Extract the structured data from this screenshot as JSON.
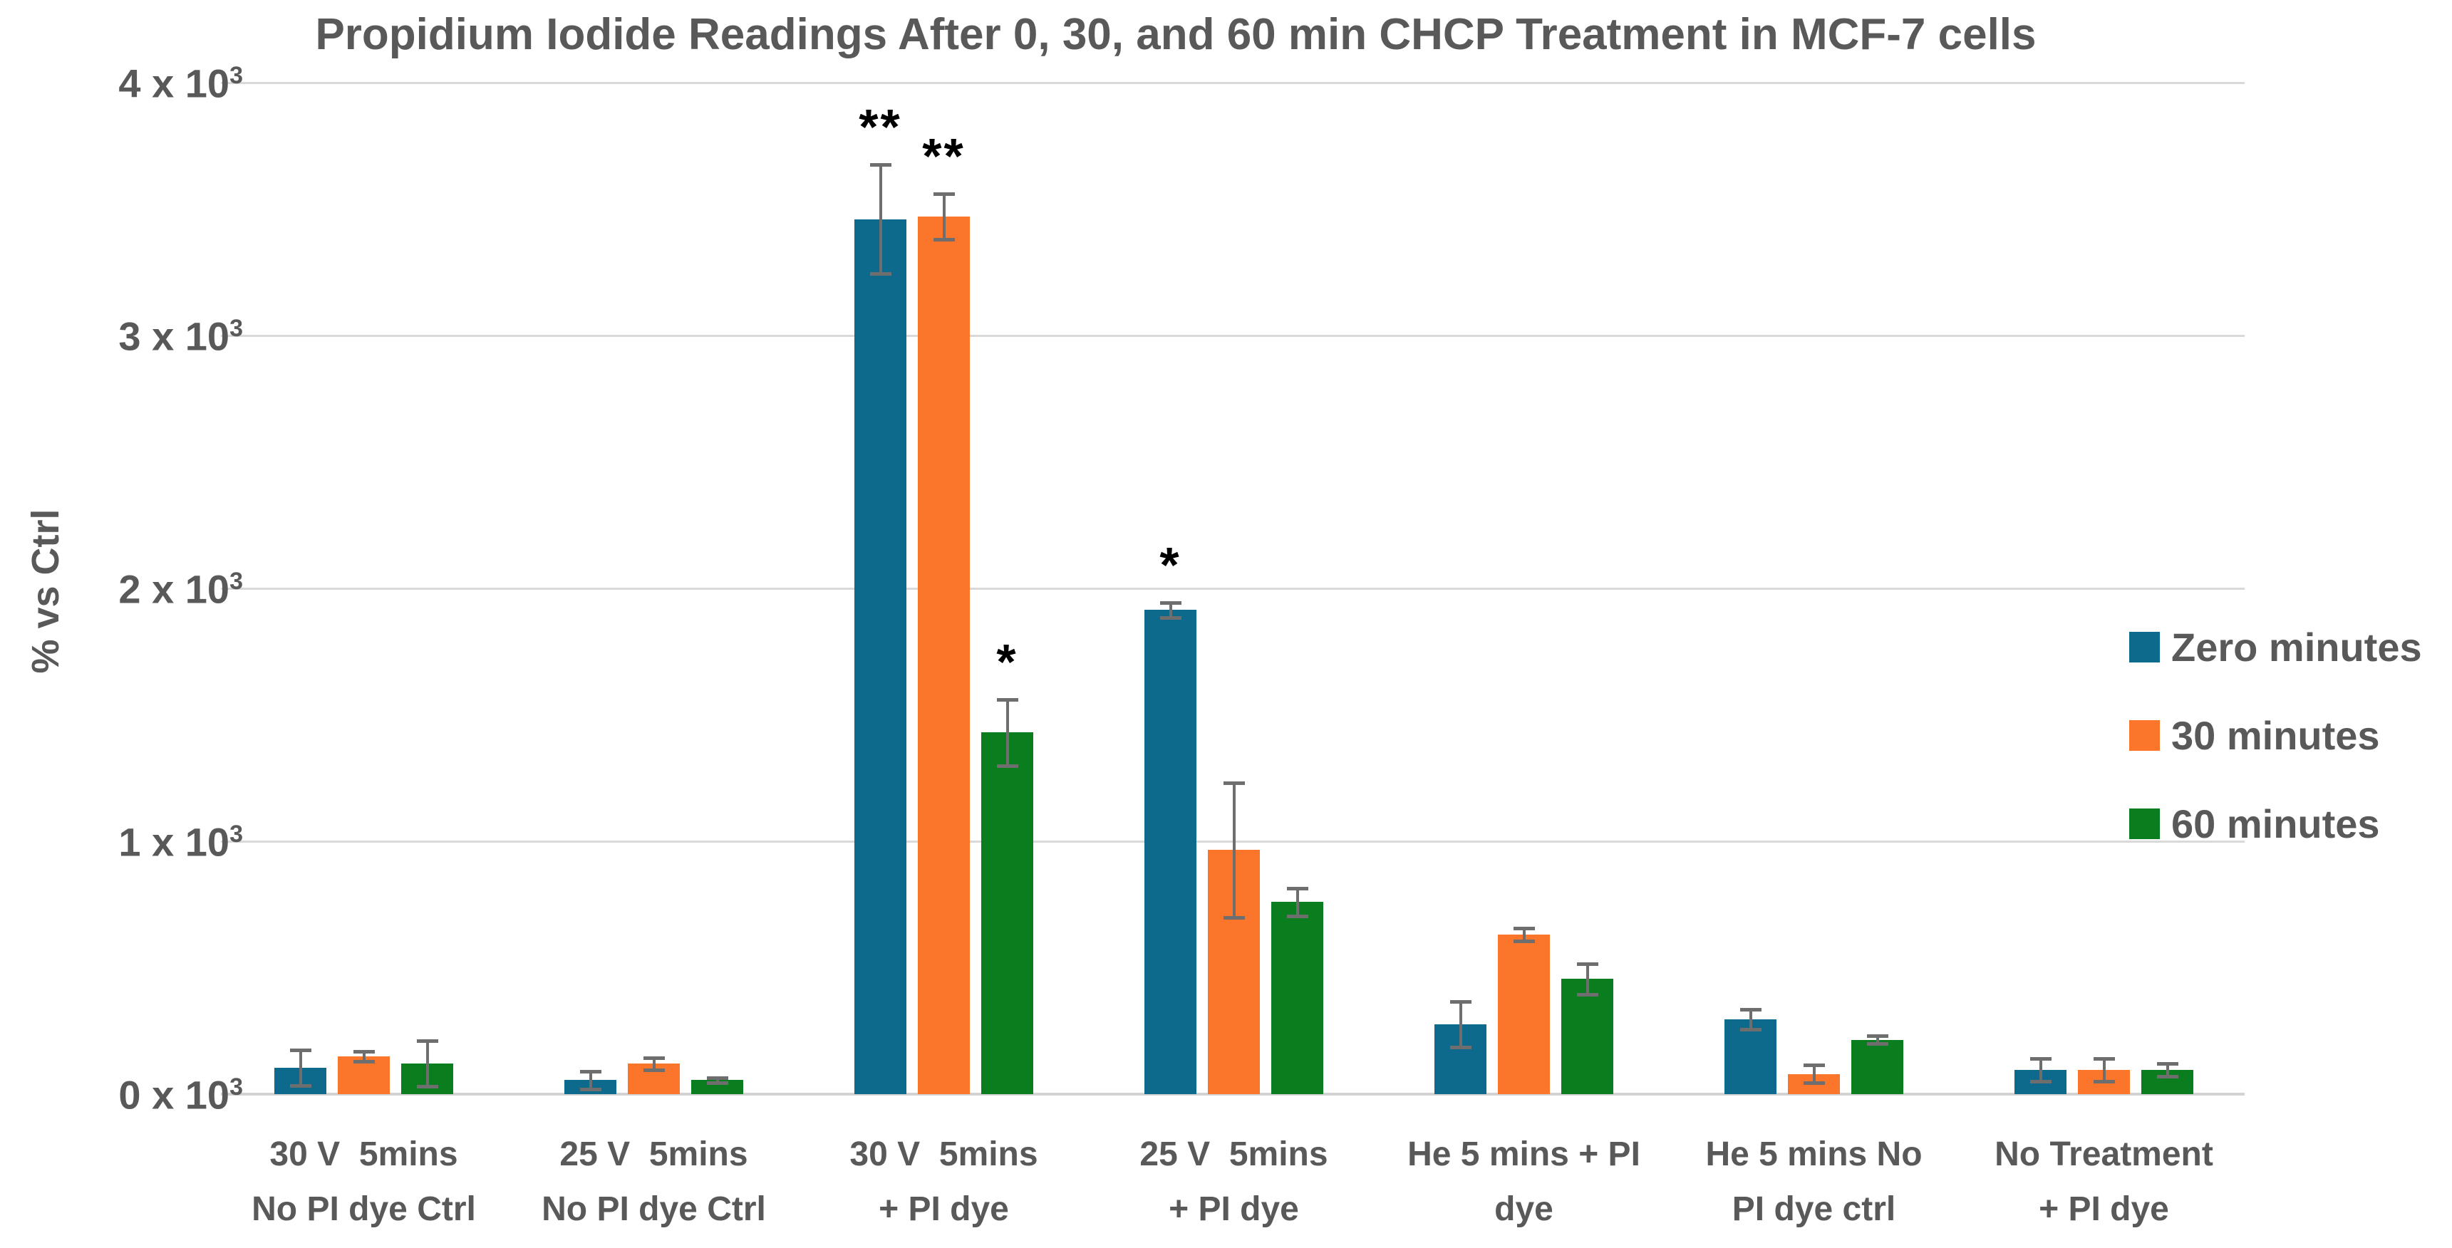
{
  "chart_data": {
    "type": "bar",
    "title": "Propidium Iodide Readings After 0, 30, and 60 min CHCP Treatment in MCF-7 cells",
    "ylabel": "% vs Ctrl",
    "ylim": [
      0,
      4000
    ],
    "grid": true,
    "legend_position": "right",
    "text_color": "#595959",
    "gridline_color": "#D9D9D9",
    "axis_line_color": "#D2D2D2",
    "error_bar_color": "#6E6E6E",
    "yticks": [
      {
        "value": 0,
        "base": "0 x 10",
        "sup": "3"
      },
      {
        "value": 1000,
        "base": "1 x 10",
        "sup": "3"
      },
      {
        "value": 2000,
        "base": "2 x 10",
        "sup": "3"
      },
      {
        "value": 3000,
        "base": "3 x 10",
        "sup": "3"
      },
      {
        "value": 4000,
        "base": "4 x 10",
        "sup": "3"
      }
    ],
    "categories": [
      [
        "30 V  5mins",
        "No PI dye Ctrl"
      ],
      [
        "25 V  5mins",
        "No PI dye Ctrl"
      ],
      [
        "30 V  5mins",
        "+ PI dye"
      ],
      [
        "25 V  5mins",
        "+ PI dye"
      ],
      [
        "He 5 mins + PI",
        "dye"
      ],
      [
        "He 5 mins No",
        "PI dye ctrl"
      ],
      [
        "No Treatment",
        "+ PI dye"
      ]
    ],
    "series": [
      {
        "name": "Zero minutes",
        "color": "#0E6A8C",
        "values": [
          105,
          55,
          3460,
          1915,
          275,
          295,
          95
        ],
        "errors": [
          70,
          35,
          215,
          30,
          90,
          40,
          45
        ]
      },
      {
        "name": "30 minutes",
        "color": "#FB762B",
        "values": [
          150,
          120,
          3470,
          965,
          630,
          80,
          95
        ],
        "errors": [
          20,
          25,
          90,
          265,
          25,
          35,
          45
        ]
      },
      {
        "name": "60 minutes",
        "color": "#0A7D1E",
        "values": [
          120,
          55,
          1430,
          760,
          455,
          215,
          95
        ],
        "errors": [
          90,
          10,
          130,
          55,
          60,
          15,
          25
        ]
      }
    ],
    "significance": [
      {
        "group": 2,
        "series": 0,
        "label": "**"
      },
      {
        "group": 2,
        "series": 1,
        "label": "**"
      },
      {
        "group": 2,
        "series": 2,
        "label": "*"
      },
      {
        "group": 3,
        "series": 0,
        "label": "*"
      }
    ]
  }
}
